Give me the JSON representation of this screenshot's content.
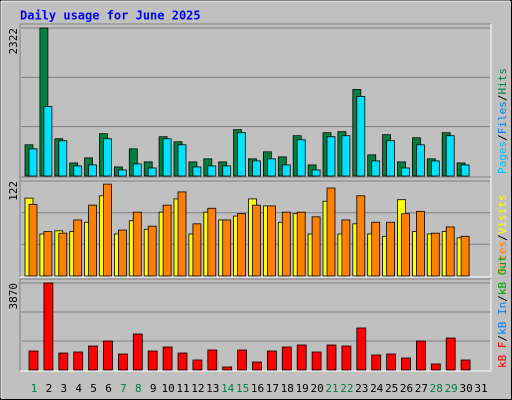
{
  "chart_data": [
    {
      "type": "bar",
      "title": "Daily usage for June 2025",
      "ylim": [
        0,
        2322
      ],
      "yticks": [
        2322
      ],
      "grid": [
        774,
        1548
      ],
      "series": [
        {
          "name": "Hits",
          "color": "#008040",
          "values": [
            490,
            2322,
            584,
            205,
            284,
            663,
            142,
            426,
            221,
            616,
            537,
            221,
            269,
            221,
            727,
            269,
            379,
            300,
            632,
            174,
            679,
            695,
            1358,
            332,
            648,
            221,
            600,
            269,
            679,
            205,
            null
          ]
        },
        {
          "name": "Pages",
          "color": "#00e0ff",
          "values": [
            426,
            1090,
            553,
            158,
            174,
            584,
            95,
            190,
            126,
            584,
            490,
            142,
            158,
            158,
            679,
            237,
            269,
            174,
            569,
            95,
            616,
            632,
            1248,
            237,
            553,
            126,
            490,
            237,
            632,
            174,
            null
          ]
        }
      ],
      "legend": [
        {
          "name": "Pages",
          "color": "#00c0ff"
        },
        {
          "name": "Files",
          "color": "#0080ff"
        },
        {
          "name": "Hits",
          "color": "#008040"
        }
      ],
      "legend_separator": "/"
    },
    {
      "type": "bar",
      "ylim": [
        0,
        122
      ],
      "yticks": [
        122
      ],
      "grid": [
        40.7,
        81.3
      ],
      "series": [
        {
          "name": "Visits",
          "color": "#ffff00",
          "values": [
            100,
            54,
            58,
            57,
            69,
            103,
            54,
            71,
            60,
            82,
            99,
            54,
            82,
            72,
            77,
            99,
            90,
            69,
            80,
            54,
            96,
            54,
            67,
            54,
            51,
            98,
            57,
            54,
            57,
            49,
            null
          ]
        },
        {
          "name": "Sites",
          "color": "#ff8000",
          "values": [
            92,
            57,
            55,
            72,
            91,
            118,
            59,
            82,
            64,
            91,
            108,
            67,
            87,
            72,
            80,
            91,
            90,
            82,
            82,
            76,
            113,
            72,
            103,
            69,
            69,
            80,
            83,
            55,
            63,
            51,
            null
          ]
        }
      ],
      "legend": [
        {
          "name": "Sites",
          "color": "#ff8000"
        },
        {
          "name": "Visits",
          "color": "#ffff00"
        }
      ],
      "legend_separator": "/"
    },
    {
      "type": "bar",
      "ylim": [
        0,
        3870
      ],
      "yticks": [
        3870
      ],
      "grid": [
        1290,
        2580
      ],
      "categories": [
        "1",
        "2",
        "3",
        "4",
        "5",
        "6",
        "7",
        "8",
        "9",
        "10",
        "11",
        "12",
        "13",
        "14",
        "15",
        "16",
        "17",
        "18",
        "19",
        "20",
        "21",
        "22",
        "23",
        "24",
        "25",
        "26",
        "27",
        "28",
        "29",
        "30",
        "31"
      ],
      "category_colors": [
        "#008040",
        "#000000",
        "#000000",
        "#000000",
        "#000000",
        "#000000",
        "#008040",
        "#008040",
        "#000000",
        "#000000",
        "#000000",
        "#000000",
        "#000000",
        "#008040",
        "#008040",
        "#000000",
        "#000000",
        "#000000",
        "#000000",
        "#000000",
        "#008040",
        "#008040",
        "#000000",
        "#000000",
        "#000000",
        "#000000",
        "#000000",
        "#008040",
        "#008040",
        "#000000",
        "#000000"
      ],
      "series": [
        {
          "name": "kB F",
          "color": "#ff0000",
          "values": [
            845,
            3870,
            756,
            801,
            1068,
            1290,
            712,
            1602,
            845,
            1023,
            756,
            445,
            890,
            134,
            890,
            356,
            845,
            1023,
            1112,
            801,
            1112,
            1068,
            1869,
            667,
            712,
            534,
            1290,
            267,
            1424,
            445,
            null
          ]
        }
      ],
      "legend": [
        {
          "name": "kB F",
          "color": "#ff0000"
        },
        {
          "name": "kB In",
          "color": "#0080ff"
        },
        {
          "name": "kB Out",
          "color": "#00a000"
        }
      ],
      "legend_separator": "/"
    }
  ]
}
